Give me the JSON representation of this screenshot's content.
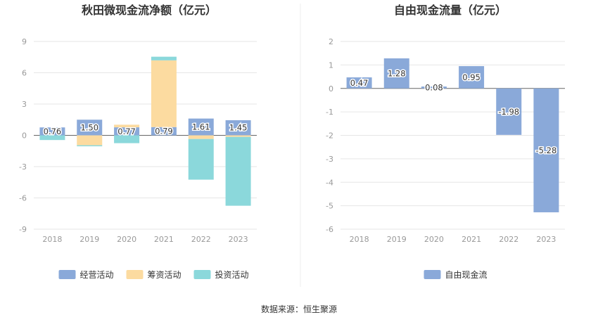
{
  "source_label": "数据来源：恒生聚源",
  "chart_data": [
    {
      "type": "bar",
      "stacked": true,
      "title": "秋田微现金流净额（亿元）",
      "categories": [
        "2018",
        "2019",
        "2020",
        "2021",
        "2022",
        "2023"
      ],
      "ylim": [
        -9,
        9
      ],
      "yticks": [
        -9,
        -6,
        -3,
        0,
        3,
        6,
        9
      ],
      "grid": true,
      "legend_position": "bottom",
      "series": [
        {
          "name": "经营活动",
          "color": "#8aa9d9",
          "values": [
            0.76,
            1.5,
            0.77,
            0.79,
            1.61,
            1.45
          ],
          "labels": [
            "0.76",
            "1.50",
            "0.77",
            "0.79",
            "1.61",
            "1.45"
          ]
        },
        {
          "name": "筹资活动",
          "color": "#fcdba0",
          "values": [
            0.0,
            -0.95,
            0.25,
            6.4,
            -0.35,
            -0.15
          ]
        },
        {
          "name": "投资活动",
          "color": "#8bd8db",
          "values": [
            -0.45,
            -0.1,
            -0.75,
            0.35,
            -3.9,
            -6.6
          ]
        }
      ]
    },
    {
      "type": "bar",
      "title": "自由现金流量（亿元）",
      "categories": [
        "2018",
        "2019",
        "2020",
        "2021",
        "2022",
        "2023"
      ],
      "ylim": [
        -6,
        2
      ],
      "yticks": [
        -6,
        -5,
        -4,
        -3,
        -2,
        -1,
        0,
        1,
        2
      ],
      "grid": true,
      "legend_position": "bottom",
      "series": [
        {
          "name": "自由现金流",
          "color": "#8aa9d9",
          "values": [
            0.47,
            1.28,
            0.08,
            0.95,
            -1.98,
            -5.28
          ],
          "labels": [
            "0.47",
            "1.28",
            "0.08",
            "0.95",
            "-1.98",
            "-5.28"
          ]
        }
      ]
    }
  ]
}
